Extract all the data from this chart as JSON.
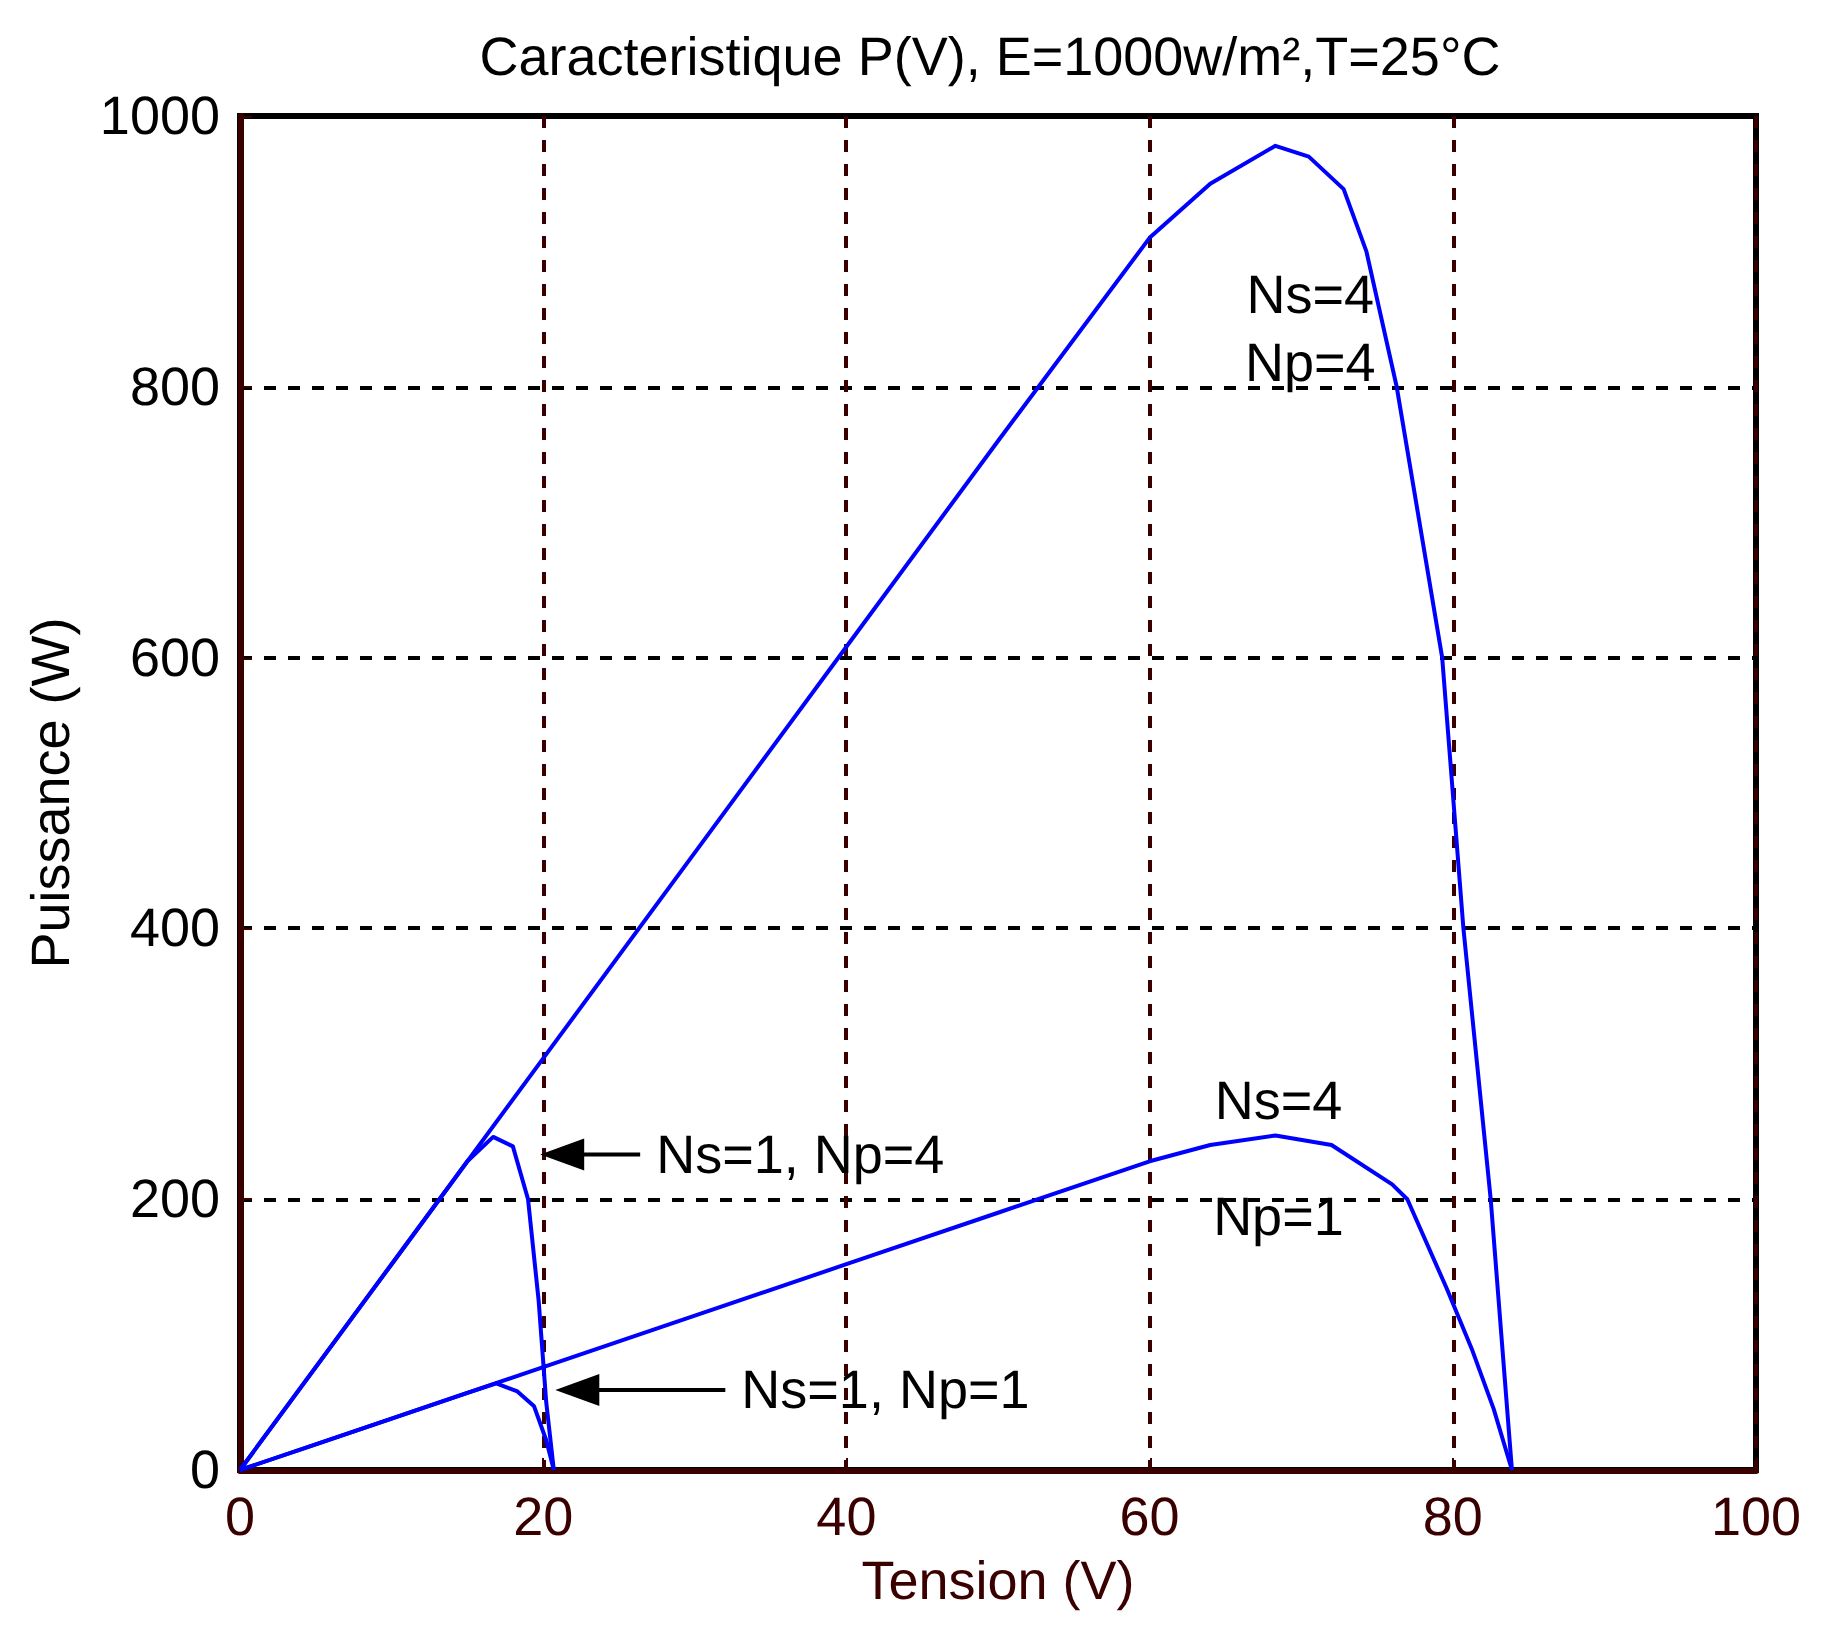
{
  "chart_data": {
    "type": "line",
    "title": "Caracteristique P(V), E=1000w/m²,T=25°C",
    "xlabel": "Tension (V)",
    "ylabel": "Puissance (W)",
    "xlim": [
      0,
      100
    ],
    "xticks": [
      0,
      20,
      40,
      60,
      80,
      100
    ],
    "ylim": [
      0,
      1000
    ],
    "yticks": [
      0,
      200,
      400,
      600,
      800,
      1000
    ],
    "grid": true,
    "marker": "none",
    "line_style": "solid",
    "series": [
      {
        "color": "#0000ff",
        "x": [
          0,
          10,
          20,
          30,
          40,
          50,
          60,
          64,
          68.3,
          70.5,
          72.8,
          74.3,
          76.3,
          77.5,
          79.3,
          80.7,
          81.6,
          82.5,
          83.2,
          83.9
        ],
        "values": [
          0,
          152,
          304,
          456,
          608,
          760,
          910,
          950,
          978,
          970,
          946,
          900,
          800,
          720,
          600,
          400,
          300,
          200,
          100,
          0
        ]
      },
      {
        "color": "#0000ff",
        "x": [
          0,
          10,
          20,
          30,
          40,
          50,
          60,
          64,
          68.3,
          72,
          76,
          77,
          79.6,
          81.3,
          82.7,
          83.9
        ],
        "values": [
          0,
          38,
          76,
          114,
          152,
          190,
          228,
          240,
          247,
          240,
          211,
          200,
          134,
          88,
          45,
          0
        ]
      },
      {
        "color": "#0000ff",
        "x": [
          0,
          5,
          10,
          15,
          16.7,
          18.0,
          19.0,
          19.7,
          20.2,
          20.7
        ],
        "values": [
          0,
          76,
          152,
          228,
          246,
          239,
          200,
          125,
          50,
          0
        ]
      },
      {
        "color": "#0000ff",
        "x": [
          0,
          5,
          10,
          15,
          16.9,
          18.3,
          19.4,
          20.2,
          20.7
        ],
        "values": [
          0,
          19,
          38,
          57,
          64,
          58,
          47,
          22,
          0
        ]
      }
    ],
    "annotations": [
      "Ns=1, Np=4",
      "Ns=1, Np=1",
      "Ns=4\nNp=4",
      "Ns=4\nNp=1"
    ]
  }
}
